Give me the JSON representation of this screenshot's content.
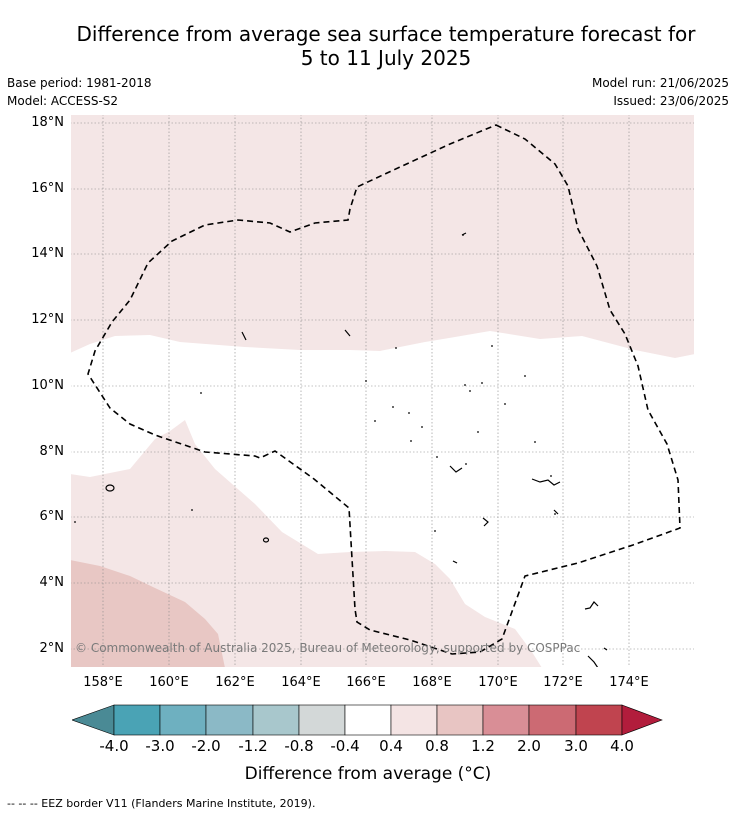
{
  "title_line1": "Difference from average sea surface temperature forecast for",
  "title_line2": "5 to 11 July 2025",
  "base_period": "Base period: 1981-2018",
  "model": "Model: ACCESS-S2",
  "model_run": "Model run: 21/06/2025",
  "issued": "Issued: 23/06/2025",
  "lat_labels": [
    "18°N",
    "16°N",
    "14°N",
    "12°N",
    "10°N",
    "8°N",
    "6°N",
    "4°N",
    "2°N"
  ],
  "lon_labels": [
    "158°E",
    "160°E",
    "162°E",
    "164°E",
    "166°E",
    "168°E",
    "170°E",
    "172°E",
    "174°E"
  ],
  "copyright": "© Commonwealth of Australia 2025, Bureau of Meteorology, supported by COSPPac",
  "colorbar": {
    "label": "Difference from average (°C)",
    "ticks": [
      "-4.0",
      "-3.0",
      "-2.0",
      "-1.2",
      "-0.8",
      "-0.4",
      "0.4",
      "0.8",
      "1.2",
      "2.0",
      "3.0",
      "4.0"
    ],
    "colors": [
      "#4a8a95",
      "#4aa3b5",
      "#6eb0c0",
      "#8bb9c6",
      "#a8c7cc",
      "#d3d8d8",
      "#ffffff",
      "#f4e4e4",
      "#e8c5c3",
      "#d98e96",
      "#cc6a73",
      "#c0444f",
      "#b21d3c"
    ]
  },
  "footer": "-- -- -- EEZ border V11 (Flanders Marine Institute, 2019)."
}
